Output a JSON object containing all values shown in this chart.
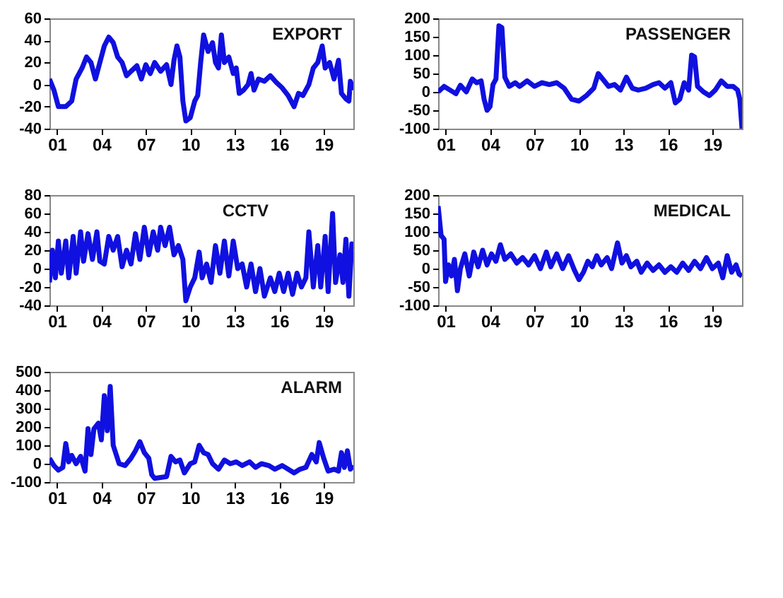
{
  "chart_data": [
    {
      "type": "line",
      "title": "EXPORT",
      "xlim": [
        2000.5,
        2021
      ],
      "xticks": [
        {
          "value": 2001,
          "label": "01"
        },
        {
          "value": 2004,
          "label": "04"
        },
        {
          "value": 2007,
          "label": "07"
        },
        {
          "value": 2010,
          "label": "10"
        },
        {
          "value": 2013,
          "label": "13"
        },
        {
          "value": 2016,
          "label": "16"
        },
        {
          "value": 2019,
          "label": "19"
        }
      ],
      "ylim": [
        -40,
        60
      ],
      "yticks": [
        -40,
        -20,
        0,
        20,
        40,
        60
      ],
      "grid": false,
      "series": [
        {
          "color": "#1010e0",
          "x": [
            2000.5,
            2000.8,
            2001.1,
            2001.6,
            2002,
            2002.3,
            2002.7,
            2003,
            2003.3,
            2003.6,
            2003.9,
            2004.2,
            2004.5,
            2004.8,
            2005.1,
            2005.4,
            2005.7,
            2006,
            2006.4,
            2006.7,
            2007,
            2007.3,
            2007.6,
            2008,
            2008.4,
            2008.7,
            2008.9,
            2009.1,
            2009.3,
            2009.5,
            2009.7,
            2010,
            2010.3,
            2010.5,
            2010.7,
            2010.9,
            2011.2,
            2011.5,
            2011.7,
            2011.9,
            2012.1,
            2012.3,
            2012.6,
            2012.9,
            2013.1,
            2013.3,
            2013.6,
            2013.9,
            2014.1,
            2014.3,
            2014.6,
            2015,
            2015.4,
            2015.8,
            2016.2,
            2016.6,
            2017,
            2017.3,
            2017.6,
            2018,
            2018.3,
            2018.6,
            2018.9,
            2019.1,
            2019.4,
            2019.7,
            2020,
            2020.2,
            2020.5,
            2020.7,
            2020.8,
            2021
          ],
          "values": [
            5,
            -5,
            -20,
            -20,
            -15,
            5,
            15,
            25,
            20,
            5,
            20,
            35,
            43,
            38,
            25,
            20,
            8,
            12,
            17,
            5,
            18,
            10,
            20,
            12,
            18,
            0,
            22,
            35,
            25,
            -15,
            -33,
            -30,
            -15,
            -10,
            20,
            45,
            30,
            38,
            20,
            15,
            45,
            20,
            25,
            10,
            15,
            -8,
            -5,
            0,
            10,
            -5,
            5,
            3,
            8,
            2,
            -3,
            -10,
            -20,
            -8,
            -10,
            0,
            15,
            20,
            35,
            15,
            20,
            5,
            22,
            -8,
            -13,
            -15,
            3,
            -5
          ]
        }
      ]
    },
    {
      "type": "line",
      "title": "PASSENGER",
      "xlim": [
        2000.5,
        2021
      ],
      "xticks": [
        {
          "value": 2001,
          "label": "01"
        },
        {
          "value": 2004,
          "label": "04"
        },
        {
          "value": 2007,
          "label": "07"
        },
        {
          "value": 2010,
          "label": "10"
        },
        {
          "value": 2013,
          "label": "13"
        },
        {
          "value": 2016,
          "label": "16"
        },
        {
          "value": 2019,
          "label": "19"
        }
      ],
      "ylim": [
        -100,
        200
      ],
      "yticks": [
        -100,
        -50,
        0,
        50,
        100,
        150,
        200
      ],
      "grid": false,
      "series": [
        {
          "color": "#1010e0",
          "x": [
            2000.5,
            2000.9,
            2001.3,
            2001.7,
            2002,
            2002.4,
            2002.8,
            2003.1,
            2003.4,
            2003.6,
            2003.8,
            2004,
            2004.2,
            2004.4,
            2004.6,
            2004.8,
            2005,
            2005.3,
            2005.7,
            2006,
            2006.5,
            2007,
            2007.5,
            2008,
            2008.5,
            2009,
            2009.5,
            2010,
            2010.5,
            2011,
            2011.3,
            2011.6,
            2012,
            2012.4,
            2012.8,
            2013.2,
            2013.6,
            2014,
            2014.5,
            2015,
            2015.4,
            2015.8,
            2016.2,
            2016.5,
            2016.8,
            2017.1,
            2017.4,
            2017.6,
            2017.8,
            2018,
            2018.4,
            2018.8,
            2019.2,
            2019.6,
            2020,
            2020.4,
            2020.7,
            2020.85,
            2021
          ],
          "values": [
            0,
            15,
            5,
            -5,
            18,
            0,
            35,
            25,
            30,
            -20,
            -50,
            -40,
            20,
            35,
            180,
            175,
            40,
            15,
            25,
            15,
            30,
            15,
            25,
            20,
            25,
            10,
            -20,
            -25,
            -10,
            10,
            50,
            35,
            15,
            20,
            5,
            40,
            10,
            5,
            10,
            20,
            25,
            10,
            25,
            -30,
            -20,
            25,
            5,
            100,
            95,
            15,
            0,
            -10,
            5,
            30,
            15,
            15,
            5,
            -20,
            -100
          ]
        }
      ]
    },
    {
      "type": "line",
      "title": "CCTV",
      "xlim": [
        2000.5,
        2021
      ],
      "xticks": [
        {
          "value": 2001,
          "label": "01"
        },
        {
          "value": 2004,
          "label": "04"
        },
        {
          "value": 2007,
          "label": "07"
        },
        {
          "value": 2010,
          "label": "10"
        },
        {
          "value": 2013,
          "label": "13"
        },
        {
          "value": 2016,
          "label": "16"
        },
        {
          "value": 2019,
          "label": "19"
        }
      ],
      "ylim": [
        -40,
        80
      ],
      "yticks": [
        -40,
        -20,
        0,
        20,
        40,
        60,
        80
      ],
      "grid": false,
      "series": [
        {
          "color": "#1010e0",
          "x": [
            2000.5,
            2000.7,
            2000.9,
            2001.1,
            2001.3,
            2001.6,
            2001.8,
            2002.1,
            2002.3,
            2002.6,
            2002.8,
            2003.1,
            2003.4,
            2003.7,
            2003.9,
            2004.2,
            2004.5,
            2004.8,
            2005.1,
            2005.4,
            2005.7,
            2006,
            2006.3,
            2006.6,
            2006.9,
            2007.2,
            2007.5,
            2007.8,
            2008,
            2008.3,
            2008.6,
            2008.9,
            2009.2,
            2009.5,
            2009.7,
            2010,
            2010.3,
            2010.6,
            2010.8,
            2011.1,
            2011.4,
            2011.7,
            2012,
            2012.3,
            2012.6,
            2012.9,
            2013.2,
            2013.5,
            2013.8,
            2014.1,
            2014.4,
            2014.7,
            2015,
            2015.4,
            2015.7,
            2016,
            2016.3,
            2016.6,
            2016.9,
            2017.2,
            2017.5,
            2017.8,
            2018,
            2018.3,
            2018.6,
            2018.8,
            2019.1,
            2019.3,
            2019.6,
            2019.8,
            2020.1,
            2020.3,
            2020.5,
            2020.7,
            2020.9,
            2021
          ],
          "values": [
            -15,
            20,
            -10,
            30,
            -5,
            30,
            -10,
            35,
            -5,
            40,
            8,
            38,
            10,
            40,
            8,
            5,
            35,
            20,
            35,
            2,
            20,
            5,
            38,
            10,
            45,
            15,
            40,
            20,
            45,
            25,
            45,
            15,
            25,
            10,
            -35,
            -20,
            -10,
            18,
            -10,
            5,
            -15,
            25,
            -5,
            30,
            -8,
            30,
            0,
            5,
            -20,
            5,
            -25,
            0,
            -30,
            -10,
            -25,
            -5,
            -25,
            -5,
            -28,
            -5,
            -20,
            -10,
            40,
            -20,
            25,
            -20,
            35,
            -25,
            60,
            -15,
            15,
            -15,
            32,
            -30,
            27,
            20
          ]
        }
      ]
    },
    {
      "type": "line",
      "title": "MEDICAL",
      "xlim": [
        2000.5,
        2021
      ],
      "xticks": [
        {
          "value": 2001,
          "label": "01"
        },
        {
          "value": 2004,
          "label": "04"
        },
        {
          "value": 2007,
          "label": "07"
        },
        {
          "value": 2010,
          "label": "10"
        },
        {
          "value": 2013,
          "label": "13"
        },
        {
          "value": 2016,
          "label": "16"
        },
        {
          "value": 2019,
          "label": "19"
        }
      ],
      "ylim": [
        -100,
        200
      ],
      "yticks": [
        -100,
        -50,
        0,
        50,
        100,
        150,
        200
      ],
      "grid": false,
      "series": [
        {
          "color": "#1010e0",
          "x": [
            2000.5,
            2000.7,
            2000.9,
            2001,
            2001.2,
            2001.4,
            2001.6,
            2001.8,
            2002,
            2002.3,
            2002.6,
            2002.9,
            2003.2,
            2003.5,
            2003.8,
            2004.1,
            2004.4,
            2004.7,
            2005,
            2005.4,
            2005.8,
            2006.2,
            2006.6,
            2007,
            2007.4,
            2007.8,
            2008.1,
            2008.5,
            2008.9,
            2009.3,
            2009.7,
            2010,
            2010.3,
            2010.6,
            2010.9,
            2011.2,
            2011.5,
            2011.9,
            2012.2,
            2012.6,
            2012.9,
            2013.2,
            2013.5,
            2013.9,
            2014.2,
            2014.6,
            2015,
            2015.4,
            2015.8,
            2016.2,
            2016.6,
            2017,
            2017.4,
            2017.8,
            2018.2,
            2018.6,
            2019,
            2019.4,
            2019.7,
            2020,
            2020.3,
            2020.6,
            2020.8,
            2021
          ],
          "values": [
            170,
            90,
            80,
            -35,
            10,
            -20,
            25,
            -60,
            0,
            40,
            -20,
            45,
            5,
            50,
            10,
            40,
            20,
            65,
            25,
            40,
            15,
            30,
            10,
            35,
            0,
            45,
            5,
            40,
            0,
            35,
            -5,
            -30,
            -10,
            20,
            5,
            35,
            10,
            30,
            0,
            70,
            15,
            35,
            5,
            20,
            -10,
            15,
            -5,
            10,
            -10,
            5,
            -10,
            15,
            -5,
            20,
            0,
            30,
            0,
            15,
            -25,
            35,
            -10,
            10,
            -15,
            -20
          ]
        }
      ]
    },
    {
      "type": "line",
      "title": "ALARM",
      "xlim": [
        2000.5,
        2021
      ],
      "xticks": [
        {
          "value": 2001,
          "label": "01"
        },
        {
          "value": 2004,
          "label": "04"
        },
        {
          "value": 2007,
          "label": "07"
        },
        {
          "value": 2010,
          "label": "10"
        },
        {
          "value": 2013,
          "label": "13"
        },
        {
          "value": 2016,
          "label": "16"
        },
        {
          "value": 2019,
          "label": "19"
        }
      ],
      "ylim": [
        -100,
        500
      ],
      "yticks": [
        -100,
        0,
        100,
        200,
        300,
        400,
        500
      ],
      "grid": false,
      "series": [
        {
          "color": "#1010e0",
          "x": [
            2000.5,
            2000.8,
            2001.1,
            2001.4,
            2001.6,
            2001.8,
            2002,
            2002.3,
            2002.6,
            2002.9,
            2003.1,
            2003.3,
            2003.5,
            2003.8,
            2004,
            2004.2,
            2004.4,
            2004.6,
            2004.8,
            2005,
            2005.2,
            2005.6,
            2006,
            2006.3,
            2006.6,
            2006.9,
            2007.2,
            2007.4,
            2007.6,
            2008,
            2008.4,
            2008.7,
            2009,
            2009.3,
            2009.6,
            2010,
            2010.3,
            2010.6,
            2010.9,
            2011.2,
            2011.5,
            2011.9,
            2012.3,
            2012.7,
            2013.1,
            2013.5,
            2014,
            2014.4,
            2014.8,
            2015.3,
            2015.7,
            2016.2,
            2016.6,
            2017,
            2017.4,
            2017.8,
            2018.2,
            2018.5,
            2018.7,
            2019,
            2019.3,
            2019.7,
            2020,
            2020.2,
            2020.4,
            2020.6,
            2020.8,
            2021
          ],
          "values": [
            30,
            -10,
            -35,
            -20,
            110,
            10,
            45,
            0,
            40,
            -40,
            190,
            50,
            190,
            220,
            130,
            370,
            180,
            420,
            100,
            50,
            0,
            -10,
            30,
            70,
            120,
            60,
            30,
            -60,
            -80,
            -75,
            -70,
            40,
            10,
            20,
            -50,
            0,
            10,
            100,
            60,
            50,
            0,
            -30,
            20,
            0,
            10,
            -10,
            10,
            -20,
            0,
            -10,
            -30,
            -10,
            -30,
            -50,
            -30,
            -20,
            50,
            10,
            115,
            30,
            -40,
            -30,
            -40,
            60,
            -20,
            70,
            -30,
            -10
          ]
        }
      ]
    }
  ]
}
